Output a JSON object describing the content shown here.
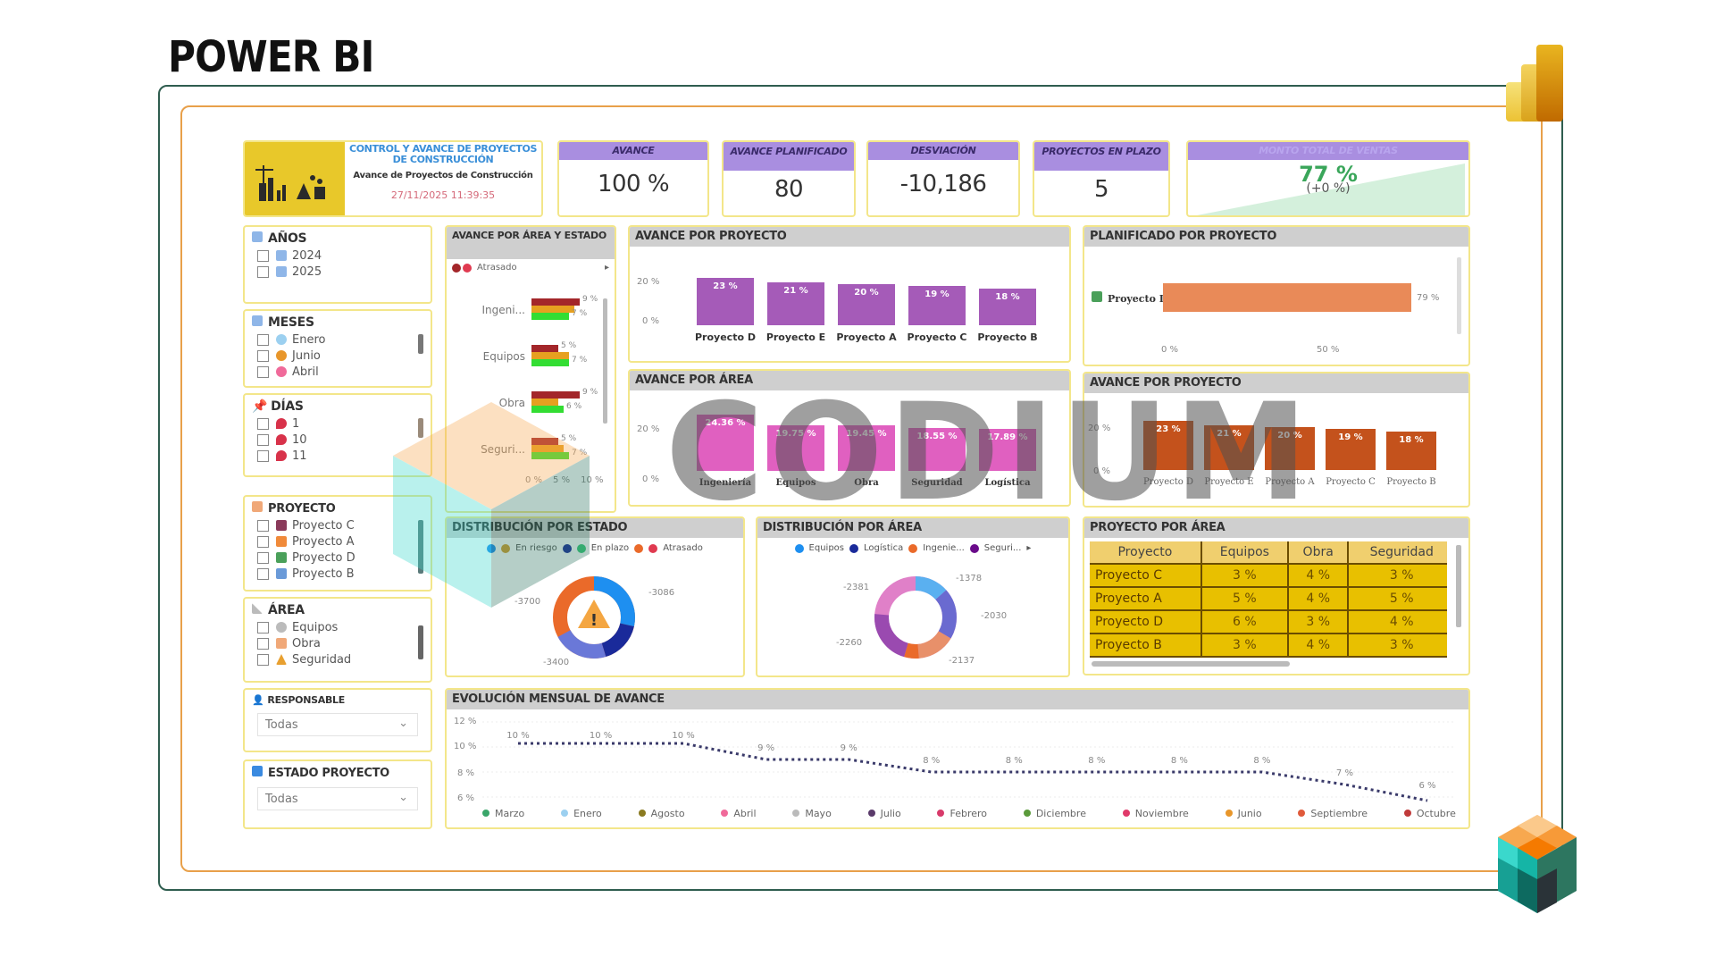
{
  "page_title": "POWER BI",
  "header": {
    "title_line1": "CONTROL Y AVANCE DE PROYECTOS",
    "title_line2": "DE CONSTRUCCIÓN",
    "subtitle": "Avance de Proyectos de Construcción",
    "timestamp": "27/11/2025  11:39:35"
  },
  "kpis": [
    {
      "label": "AVANCE",
      "value": "100 %"
    },
    {
      "label": "AVANCE PLANIFICADO",
      "value": "80"
    },
    {
      "label": "DESVIACIÓN",
      "value": "-10,186"
    },
    {
      "label": "PROYECTOS EN PLAZO",
      "value": "5"
    },
    {
      "label": "MONTO TOTAL DE VENTAS",
      "value": "77 %",
      "delta": "(+0 %)"
    }
  ],
  "slicers": {
    "anos": {
      "title": "AÑOS",
      "items": [
        "2024",
        "2025"
      ]
    },
    "meses": {
      "title": "MESES",
      "items": [
        "Enero",
        "Junio",
        "Abril"
      ]
    },
    "dias": {
      "title": "DÍAS",
      "items": [
        "1",
        "10",
        "11"
      ]
    },
    "proyecto": {
      "title": "PROYECTO",
      "items": [
        "Proyecto C",
        "Proyecto A",
        "Proyecto D",
        "Proyecto B"
      ]
    },
    "area": {
      "title": "ÁREA",
      "items": [
        "Equipos",
        "Obra",
        "Seguridad"
      ]
    },
    "responsable": {
      "title": "RESPONSABLE",
      "value": "Todas"
    },
    "estado_proyecto": {
      "title": "ESTADO PROYECTO",
      "value": "Todas"
    }
  },
  "visuals": {
    "avance_area_estado": {
      "title": "AVANCE POR ÁREA Y ESTADO",
      "legend": "Atrasado",
      "x_ticks": [
        "0 %",
        "5 %",
        "10 %"
      ]
    },
    "avance_proyecto": {
      "title": "AVANCE POR PROYECTO",
      "y_ticks": [
        "20 %",
        "0 %"
      ]
    },
    "planificado_proyecto": {
      "title": "PLANIFICADO POR PROYECTO",
      "x_ticks": [
        "0 %",
        "50 %"
      ]
    },
    "avance_area": {
      "title": "AVANCE POR ÁREA",
      "y_ticks": [
        "20 %",
        "0 %"
      ]
    },
    "avance_proyecto_2": {
      "title": "AVANCE POR PROYECTO",
      "y_ticks": [
        "20 %",
        "0 %"
      ]
    },
    "distribucion_estado": {
      "title": "DISTRIBUCIÓN POR ESTADO",
      "legend": [
        "En riesgo",
        "En plazo",
        "Atrasado"
      ]
    },
    "distribucion_area": {
      "title": "DISTRIBUCIÓN POR ÁREA",
      "legend": [
        "Equipos",
        "Logística",
        "Ingenie...",
        "Seguri..."
      ]
    },
    "proyecto_area": {
      "title": "PROYECTO POR ÁREA",
      "columns": [
        "Proyecto",
        "Equipos",
        "Obra",
        "Seguridad"
      ],
      "rows": [
        [
          "Proyecto C",
          "3 %",
          "4 %",
          "3 %"
        ],
        [
          "Proyecto A",
          "5 %",
          "4 %",
          "5 %"
        ],
        [
          "Proyecto D",
          "6 %",
          "3 %",
          "4 %"
        ],
        [
          "Proyecto B",
          "3 %",
          "4 %",
          "3 %"
        ]
      ]
    },
    "evolucion": {
      "title": "EVOLUCIÓN MENSUAL DE AVANCE",
      "y_ticks": [
        "12 %",
        "10 %",
        "8 %",
        "6 %"
      ]
    }
  },
  "chart_data": [
    {
      "type": "bar",
      "title": "AVANCE POR ÁREA Y ESTADO",
      "orientation": "horizontal",
      "categories": [
        "Ingeni...",
        "Equipos",
        "Obra",
        "Seguri..."
      ],
      "series": [
        {
          "name": "Atrasado",
          "color": "#a3262a",
          "values": [
            9,
            5,
            9,
            5
          ]
        },
        {
          "name": "En riesgo",
          "color": "#e6a020",
          "values": [
            8,
            7,
            5,
            6
          ]
        },
        {
          "name": "En plazo",
          "color": "#33dd33",
          "values": [
            7,
            7,
            6,
            7
          ]
        }
      ],
      "xlim": [
        0,
        10
      ],
      "unit": "%"
    },
    {
      "type": "bar",
      "title": "AVANCE POR PROYECTO",
      "categories": [
        "Proyecto D",
        "Proyecto E",
        "Proyecto A",
        "Proyecto C",
        "Proyecto B"
      ],
      "values": [
        23,
        21,
        20,
        19,
        18
      ],
      "labels": [
        "23 %",
        "21 %",
        "20 %",
        "19 %",
        "18 %"
      ],
      "ylim": [
        0,
        25
      ],
      "color": "#a55bb8"
    },
    {
      "type": "bar",
      "title": "PLANIFICADO POR PROYECTO",
      "orientation": "horizontal",
      "categories": [
        "Proyecto D"
      ],
      "values": [
        79
      ],
      "labels": [
        "79 %"
      ],
      "xlim": [
        0,
        100
      ],
      "color": "#e98a58"
    },
    {
      "type": "bar",
      "title": "AVANCE POR ÁREA",
      "categories": [
        "Ingeniería",
        "Equipos",
        "Obra",
        "Seguridad",
        "Logística"
      ],
      "values": [
        24.36,
        19.75,
        19.45,
        18.55,
        17.89
      ],
      "labels": [
        "24.36 %",
        "19.75 %",
        "19.45 %",
        "18.55 %",
        "17.89 %"
      ],
      "ylim": [
        0,
        25
      ],
      "color": "#e060c0"
    },
    {
      "type": "bar",
      "title": "AVANCE POR PROYECTO",
      "categories": [
        "Proyecto D",
        "Proyecto E",
        "Proyecto A",
        "Proyecto C",
        "Proyecto B"
      ],
      "values": [
        23,
        21,
        20,
        19,
        18
      ],
      "labels": [
        "23 %",
        "21 %",
        "20 %",
        "19 %",
        "18 %"
      ],
      "ylim": [
        0,
        25
      ],
      "color": "#c4521c"
    },
    {
      "type": "pie",
      "title": "DISTRIBUCIÓN POR ESTADO",
      "categories": [
        "En riesgo",
        "En plazo",
        "Atrasado"
      ],
      "labels": [
        "-3086",
        "-3400",
        "-3700"
      ],
      "values": [
        3086,
        3400,
        3700
      ],
      "colors": [
        "#1e8ff0",
        "#6a78d8",
        "#ea6a2a"
      ]
    },
    {
      "type": "pie",
      "title": "DISTRIBUCIÓN POR ÁREA",
      "categories": [
        "Equipos",
        "Logística",
        "Ingeniería",
        "Seguridad",
        "Obra"
      ],
      "labels": [
        "-1378",
        "-2030",
        "-2137",
        "-2260",
        "-2381"
      ],
      "values": [
        1378,
        2030,
        2137,
        2260,
        2381
      ],
      "colors": [
        "#5ab0f0",
        "#6a6ad0",
        "#e8906a",
        "#9a4ab0",
        "#e080c8"
      ]
    },
    {
      "type": "table",
      "title": "PROYECTO POR ÁREA",
      "columns": [
        "Proyecto",
        "Equipos",
        "Obra",
        "Seguridad"
      ],
      "rows": [
        [
          "Proyecto C",
          3,
          4,
          3
        ],
        [
          "Proyecto A",
          5,
          4,
          5
        ],
        [
          "Proyecto D",
          6,
          3,
          4
        ],
        [
          "Proyecto B",
          3,
          4,
          3
        ]
      ]
    },
    {
      "type": "line",
      "title": "EVOLUCIÓN MENSUAL DE AVANCE",
      "x": [
        "Marzo",
        "Enero",
        "Agosto",
        "Abril",
        "Mayo",
        "Julio",
        "Febrero",
        "Diciembre",
        "Noviembre",
        "Junio",
        "Septiembre",
        "Octubre"
      ],
      "values": [
        10,
        10,
        10,
        9,
        9,
        8,
        8,
        8,
        8,
        8,
        7,
        6
      ],
      "labels": [
        "10 %",
        "10 %",
        "10 %",
        "9 %",
        "9 %",
        "8 %",
        "8 %",
        "8 %",
        "8 %",
        "8 %",
        "7 %",
        "6 %"
      ],
      "ylim": [
        6,
        12
      ],
      "yticks": [
        "6 %",
        "8 %",
        "10 %",
        "12 %"
      ],
      "line_style": "dotted",
      "color": "#3a3a6a"
    }
  ],
  "watermark": "CODIUM"
}
